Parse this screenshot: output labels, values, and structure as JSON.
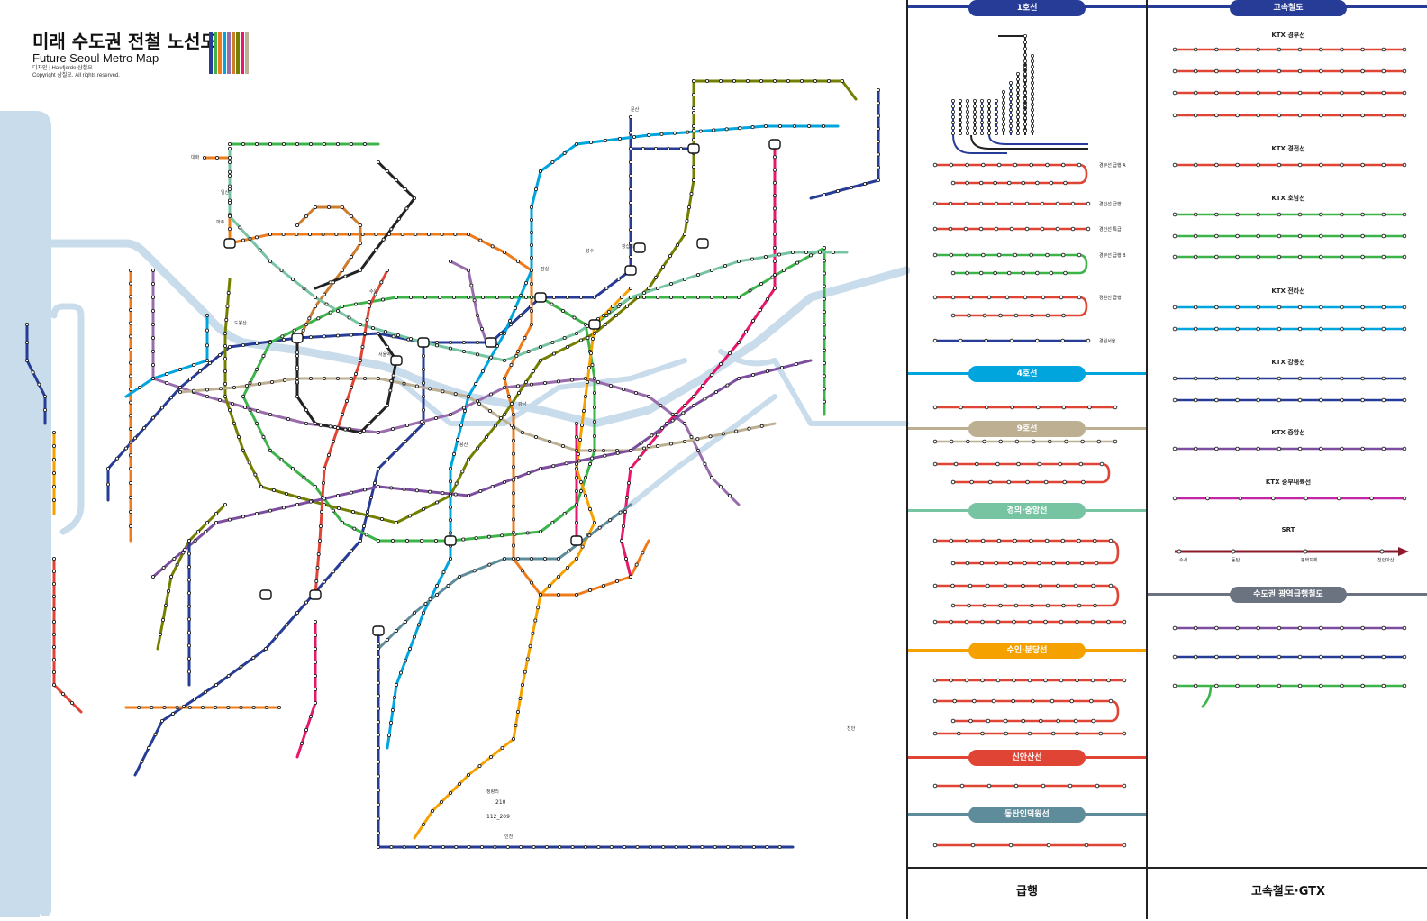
{
  "title": {
    "ko": "미래 수도권 전철 노선도",
    "en": "Future Seoul Metro Map",
    "designer": "디자인 | Halvfjerde 삼칠오",
    "copyright": "Copyright 삼칠오. All rights reserved."
  },
  "colors": {
    "line1": "#263C96",
    "line2": "#3CB44A",
    "line3": "#EF7C1C",
    "line4": "#00A5DE",
    "line5": "#996CAC",
    "line6": "#CD7C2F",
    "line7": "#747F00",
    "line8": "#E6186C",
    "line9": "#BDB092",
    "gyeongui": "#77C4A3",
    "suin": "#F5A200",
    "sinansan": "#E04434",
    "dongtan": "#5F8C9A",
    "gtx": "#7D4DA0",
    "srt": "#8B1A2B",
    "river": "#C9DCEB",
    "black": "#222222"
  },
  "map_labels": [
    "대화",
    "일산",
    "파주",
    "문산",
    "도봉산",
    "인천",
    "수원",
    "서울역",
    "용산",
    "강남",
    "잠실",
    "성수",
    "왕십리",
    "청량리",
    "천안",
    "210",
    "112_209"
  ],
  "express_panel": {
    "footer": "급행",
    "sections": [
      {
        "name": "1호선",
        "color": "#263C96",
        "services": [
          "경부선 급행 A",
          "경인선 급행",
          "경인선 특급",
          "경부선 급행 B",
          "경원선 급행",
          "경원서울"
        ]
      },
      {
        "name": "4호선",
        "color": "#00A5DE",
        "services": []
      },
      {
        "name": "9호선",
        "color": "#BDB092",
        "services": []
      },
      {
        "name": "경의·중앙선",
        "color": "#77C4A3",
        "services": []
      },
      {
        "name": "수인·분당선",
        "color": "#F5A200",
        "services": []
      },
      {
        "name": "신안산선",
        "color": "#E04434",
        "services": []
      },
      {
        "name": "동탄인덕원선",
        "color": "#5F8C9A",
        "services": []
      }
    ]
  },
  "hsr_panel": {
    "footer": "고속철도·GTX",
    "header": "고속철도",
    "routes": [
      {
        "name": "KTX 경부선",
        "color": "#E04434"
      },
      {
        "name": "KTX 경전선",
        "color": "#E04434"
      },
      {
        "name": "KTX 호남선",
        "color": "#3CB44A"
      },
      {
        "name": "KTX 전라선",
        "color": "#00A5DE"
      },
      {
        "name": "KTX 강릉선",
        "color": "#263C96"
      },
      {
        "name": "KTX 중앙선",
        "color": "#7D4DA0"
      },
      {
        "name": "KTX 중부내륙선",
        "color": "#C026A6"
      },
      {
        "name": "SRT",
        "color": "#8B1A2B"
      }
    ],
    "srt_stations": [
      "수서",
      "동탄",
      "평택지제",
      "천안아산"
    ],
    "gtx_header": "수도권 광역급행철도"
  }
}
